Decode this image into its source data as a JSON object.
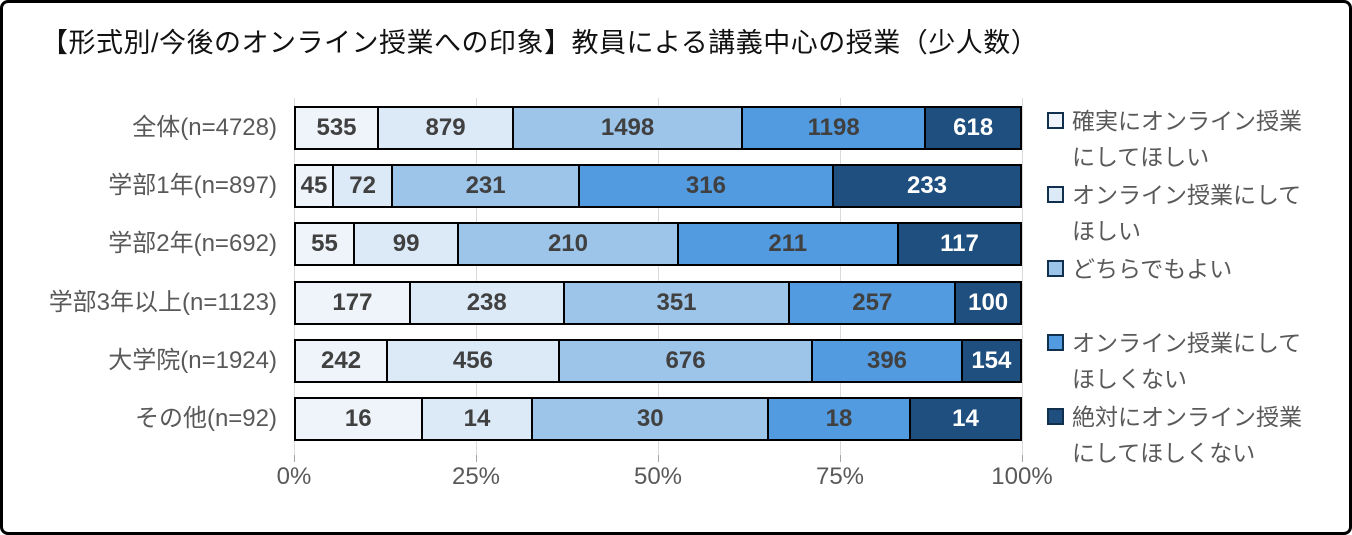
{
  "window": {
    "title": "【形式別/今後のオンライン授業への印象】教員による講義中心の授業（少人数）"
  },
  "chart_data": {
    "type": "bar",
    "subtype": "horizontal-100pct-stacked",
    "title": "【形式別/今後のオンライン授業への印象】教員による講義中心の授業（少人数）",
    "categories": [
      "全体(n=4728)",
      "学部1年(n=897)",
      "学部2年(n=692)",
      "学部3年以上(n=1123)",
      "大学院(n=1924)",
      "その他(n=92)"
    ],
    "category_totals": [
      4728,
      897,
      692,
      1123,
      1924,
      92
    ],
    "series": [
      {
        "name": "確実にオンライン授業にしてほしい",
        "legend_label_wrapped": "確実にオンライン授業\nにしてほしい",
        "color": "#eff4fa",
        "values": [
          535,
          45,
          55,
          177,
          242,
          16
        ]
      },
      {
        "name": "オンライン授業にしてほしい",
        "legend_label_wrapped": "オンライン授業にして\nほしい",
        "color": "#dce9f7",
        "values": [
          879,
          72,
          99,
          238,
          456,
          14
        ]
      },
      {
        "name": "どちらでもよい",
        "legend_label_wrapped": "どちらでもよい",
        "color": "#9dc5ea",
        "values": [
          1498,
          231,
          210,
          351,
          676,
          30
        ]
      },
      {
        "name": "オンライン授業にしてほしくない",
        "legend_label_wrapped": "オンライン授業にして\nほしくない",
        "color": "#539be0",
        "values": [
          1198,
          316,
          211,
          257,
          396,
          18
        ]
      },
      {
        "name": "絶対にオンライン授業にしてほしくない",
        "legend_label_wrapped": "絶対にオンライン授業\nにしてほしくない",
        "color": "#1e4f7e",
        "values": [
          618,
          233,
          117,
          100,
          154,
          14
        ]
      }
    ],
    "data_labels": true,
    "data_label_color": "#404040",
    "data_label_color_last_series": "#ffffff",
    "x_axis": {
      "tick_labels": [
        "0%",
        "25%",
        "50%",
        "75%",
        "100%"
      ],
      "range_pct": [
        0,
        100
      ],
      "gridlines": true
    },
    "legend": {
      "position": "right"
    },
    "colors": {
      "bar_border": "#000000",
      "gridline": "#d9d9d9",
      "axis_text": "#595959",
      "category_text": "#595959",
      "legend_text": "#595959",
      "frame_border": "#000000"
    }
  }
}
